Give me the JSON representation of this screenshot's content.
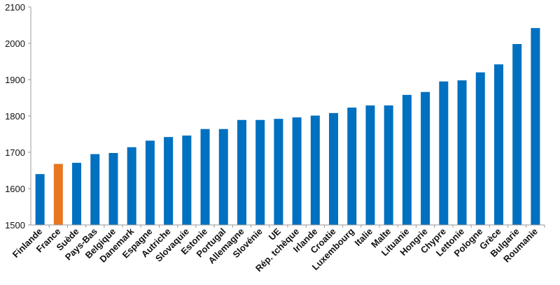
{
  "chart_data": {
    "type": "bar",
    "title": "",
    "xlabel": "",
    "ylabel": "",
    "ylim": [
      1500,
      2100
    ],
    "yticks": [
      1500,
      1600,
      1700,
      1800,
      1900,
      2000,
      2100
    ],
    "grid": false,
    "colors": {
      "default": "#0070C0",
      "highlight": "#E87722",
      "axis": "#999999"
    },
    "highlight_category": "France",
    "categories": [
      "Finlande",
      "France",
      "Suède",
      "Pays-Bas",
      "Belgique",
      "Danemark",
      "Espagne",
      "Autriche",
      "Slovaquie",
      "Estonie",
      "Portugal",
      "Allemagne",
      "Slovénie",
      "UE",
      "Rép. tchèque",
      "Irlande",
      "Croatie",
      "Luxembourg",
      "Italie",
      "Malte",
      "Lituanie",
      "Hongrie",
      "Chypre",
      "Lettonie",
      "Pologne",
      "Grèce",
      "Bulgarie",
      "Roumanie"
    ],
    "values": [
      1640,
      1668,
      1671,
      1695,
      1698,
      1714,
      1732,
      1742,
      1746,
      1764,
      1764,
      1789,
      1789,
      1792,
      1796,
      1801,
      1808,
      1823,
      1829,
      1829,
      1858,
      1866,
      1895,
      1898,
      1920,
      1942,
      1998,
      2042
    ]
  }
}
